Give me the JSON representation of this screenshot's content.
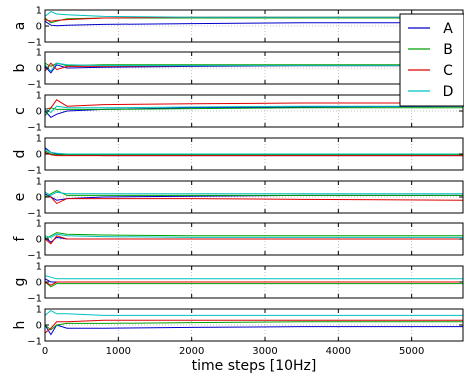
{
  "chart_data": {
    "type": "line",
    "xlabel": "time steps [10Hz]",
    "xlim": [
      0,
      5700
    ],
    "xticks": [
      0,
      1000,
      2000,
      3000,
      4000,
      5000
    ],
    "ylim": [
      -1,
      1
    ],
    "yticks": [
      -1,
      0,
      1
    ],
    "grid": true,
    "legend": {
      "placement": "top-right",
      "entries": [
        "A",
        "B",
        "C",
        "D"
      ]
    },
    "colors": {
      "A": "#0000cc",
      "B": "#00a000",
      "C": "#e00000",
      "D": "#00c0c0"
    },
    "panels": [
      {
        "label": "a",
        "series": [
          {
            "name": "A",
            "x": [
              0,
              80,
              160,
              300,
              800,
              2000,
              3500,
              5700
            ],
            "y": [
              0.3,
              0.05,
              0.02,
              0.05,
              0.1,
              0.15,
              0.2,
              0.2
            ]
          },
          {
            "name": "B",
            "x": [
              0,
              80,
              160,
              300,
              800,
              2000,
              3500,
              5700
            ],
            "y": [
              0.5,
              0.2,
              0.3,
              0.45,
              0.5,
              0.5,
              0.5,
              0.5
            ]
          },
          {
            "name": "C",
            "x": [
              0,
              80,
              160,
              300,
              800,
              2000,
              3500,
              5700
            ],
            "y": [
              0.4,
              0.3,
              0.35,
              0.4,
              0.5,
              0.55,
              0.55,
              0.55
            ]
          },
          {
            "name": "D",
            "x": [
              0,
              80,
              160,
              300,
              800,
              2000,
              3500,
              5700
            ],
            "y": [
              0.6,
              0.9,
              0.75,
              0.7,
              0.6,
              0.55,
              0.55,
              0.55
            ]
          }
        ]
      },
      {
        "label": "b",
        "series": [
          {
            "name": "A",
            "x": [
              0,
              80,
              160,
              300,
              800,
              2000,
              3500,
              5700
            ],
            "y": [
              0.1,
              -0.3,
              0.2,
              0.0,
              0.05,
              0.1,
              0.15,
              0.15
            ]
          },
          {
            "name": "B",
            "x": [
              0,
              80,
              160,
              300,
              800,
              2000,
              3500,
              5700
            ],
            "y": [
              0.3,
              0.1,
              0.3,
              0.15,
              0.2,
              0.2,
              0.2,
              0.2
            ]
          },
          {
            "name": "C",
            "x": [
              0,
              80,
              160,
              300,
              800,
              2000,
              3500,
              5700
            ],
            "y": [
              -0.2,
              0.3,
              -0.1,
              0.1,
              0.1,
              0.15,
              0.15,
              0.15
            ]
          },
          {
            "name": "D",
            "x": [
              0,
              80,
              160,
              300,
              800,
              2000,
              3500,
              5700
            ],
            "y": [
              0.2,
              -0.2,
              0.3,
              0.2,
              0.15,
              0.15,
              0.15,
              0.15
            ]
          }
        ]
      },
      {
        "label": "c",
        "series": [
          {
            "name": "A",
            "x": [
              0,
              80,
              160,
              300,
              800,
              2000,
              3500,
              5700
            ],
            "y": [
              0.0,
              -0.4,
              -0.2,
              0.0,
              0.1,
              0.2,
              0.25,
              0.3
            ]
          },
          {
            "name": "B",
            "x": [
              0,
              80,
              160,
              300,
              800,
              2000,
              3500,
              5700
            ],
            "y": [
              -0.3,
              0.2,
              0.1,
              0.1,
              0.1,
              0.15,
              0.2,
              0.2
            ]
          },
          {
            "name": "C",
            "x": [
              0,
              80,
              160,
              300,
              800,
              2000,
              3500,
              5700
            ],
            "y": [
              0.1,
              0.2,
              0.7,
              0.3,
              0.4,
              0.45,
              0.5,
              0.5
            ]
          },
          {
            "name": "D",
            "x": [
              0,
              80,
              160,
              300,
              800,
              2000,
              3500,
              5700
            ],
            "y": [
              0.2,
              -0.1,
              0.3,
              0.2,
              0.2,
              0.25,
              0.3,
              0.3
            ]
          }
        ]
      },
      {
        "label": "d",
        "series": [
          {
            "name": "A",
            "x": [
              0,
              80,
              160,
              300,
              800,
              2000,
              3500,
              5700
            ],
            "y": [
              0.4,
              0.1,
              0.0,
              -0.05,
              -0.1,
              -0.1,
              -0.1,
              -0.1
            ]
          },
          {
            "name": "B",
            "x": [
              0,
              80,
              160,
              300,
              800,
              2000,
              3500,
              5700
            ],
            "y": [
              0.2,
              0.0,
              -0.05,
              -0.05,
              -0.05,
              -0.05,
              -0.05,
              -0.05
            ]
          },
          {
            "name": "C",
            "x": [
              0,
              80,
              160,
              300,
              800,
              2000,
              3500,
              5700
            ],
            "y": [
              0.1,
              -0.05,
              -0.1,
              -0.1,
              -0.1,
              -0.1,
              -0.1,
              -0.1
            ]
          },
          {
            "name": "D",
            "x": [
              0,
              80,
              160,
              300,
              800,
              2000,
              3500,
              5700
            ],
            "y": [
              0.3,
              0.1,
              0.05,
              0.0,
              0.0,
              0.0,
              0.0,
              0.0
            ]
          }
        ]
      },
      {
        "label": "e",
        "series": [
          {
            "name": "A",
            "x": [
              0,
              80,
              160,
              300,
              800,
              2000,
              3500,
              5700
            ],
            "y": [
              0.2,
              0.0,
              -0.2,
              -0.1,
              0.0,
              0.05,
              0.1,
              0.1
            ]
          },
          {
            "name": "B",
            "x": [
              0,
              80,
              160,
              300,
              800,
              2000,
              3500,
              5700
            ],
            "y": [
              0.0,
              0.2,
              0.4,
              0.1,
              0.1,
              0.1,
              0.1,
              0.1
            ]
          },
          {
            "name": "C",
            "x": [
              0,
              80,
              160,
              300,
              800,
              2000,
              3500,
              5700
            ],
            "y": [
              0.0,
              0.0,
              -0.4,
              -0.1,
              -0.1,
              -0.1,
              -0.15,
              -0.2
            ]
          },
          {
            "name": "D",
            "x": [
              0,
              80,
              160,
              300,
              800,
              2000,
              3500,
              5700
            ],
            "y": [
              0.3,
              0.1,
              0.3,
              0.2,
              0.2,
              0.2,
              0.2,
              0.2
            ]
          }
        ]
      },
      {
        "label": "f",
        "series": [
          {
            "name": "A",
            "x": [
              0,
              80,
              160,
              300,
              800,
              2000,
              3500,
              5700
            ],
            "y": [
              0.1,
              -0.2,
              0.1,
              0.0,
              0.0,
              0.0,
              0.0,
              0.0
            ]
          },
          {
            "name": "B",
            "x": [
              0,
              80,
              160,
              300,
              800,
              2000,
              3500,
              5700
            ],
            "y": [
              0.0,
              0.2,
              0.4,
              0.3,
              0.25,
              0.2,
              0.2,
              0.2
            ]
          },
          {
            "name": "C",
            "x": [
              0,
              80,
              160,
              300,
              800,
              2000,
              3500,
              5700
            ],
            "y": [
              0.0,
              -0.3,
              0.2,
              0.0,
              0.0,
              0.0,
              0.0,
              0.0
            ]
          },
          {
            "name": "D",
            "x": [
              0,
              80,
              160,
              300,
              800,
              2000,
              3500,
              5700
            ],
            "y": [
              0.2,
              0.1,
              0.3,
              0.2,
              0.15,
              0.1,
              0.1,
              0.1
            ]
          }
        ]
      },
      {
        "label": "g",
        "series": [
          {
            "name": "A",
            "x": [
              0,
              80,
              160,
              300,
              800,
              2000,
              3500,
              5700
            ],
            "y": [
              0.2,
              0.0,
              0.0,
              0.0,
              0.0,
              0.0,
              0.0,
              0.0
            ]
          },
          {
            "name": "B",
            "x": [
              0,
              80,
              160,
              300,
              800,
              2000,
              3500,
              5700
            ],
            "y": [
              0.0,
              -0.3,
              -0.1,
              -0.1,
              -0.1,
              -0.1,
              -0.1,
              -0.1
            ]
          },
          {
            "name": "C",
            "x": [
              0,
              80,
              160,
              300,
              800,
              2000,
              3500,
              5700
            ],
            "y": [
              0.0,
              -0.2,
              0.0,
              0.0,
              0.0,
              0.0,
              0.0,
              0.0
            ]
          },
          {
            "name": "D",
            "x": [
              0,
              80,
              160,
              300,
              800,
              2000,
              3500,
              5700
            ],
            "y": [
              0.4,
              0.3,
              0.2,
              0.2,
              0.2,
              0.2,
              0.2,
              0.2
            ]
          }
        ]
      },
      {
        "label": "h",
        "series": [
          {
            "name": "A",
            "x": [
              0,
              80,
              160,
              300,
              800,
              2000,
              3500,
              5700
            ],
            "y": [
              0.0,
              -0.6,
              0.0,
              -0.2,
              -0.2,
              -0.15,
              -0.1,
              -0.1
            ]
          },
          {
            "name": "B",
            "x": [
              0,
              80,
              160,
              300,
              800,
              2000,
              3500,
              5700
            ],
            "y": [
              0.0,
              -0.3,
              0.0,
              0.1,
              0.1,
              0.15,
              0.2,
              0.2
            ]
          },
          {
            "name": "C",
            "x": [
              0,
              80,
              160,
              300,
              800,
              2000,
              3500,
              5700
            ],
            "y": [
              -0.5,
              -0.2,
              0.2,
              0.2,
              0.3,
              0.3,
              0.3,
              0.3
            ]
          },
          {
            "name": "D",
            "x": [
              0,
              80,
              160,
              300,
              800,
              2000,
              3500,
              5700
            ],
            "y": [
              0.6,
              0.9,
              0.7,
              0.7,
              0.6,
              0.6,
              0.6,
              0.6
            ]
          }
        ]
      }
    ]
  }
}
